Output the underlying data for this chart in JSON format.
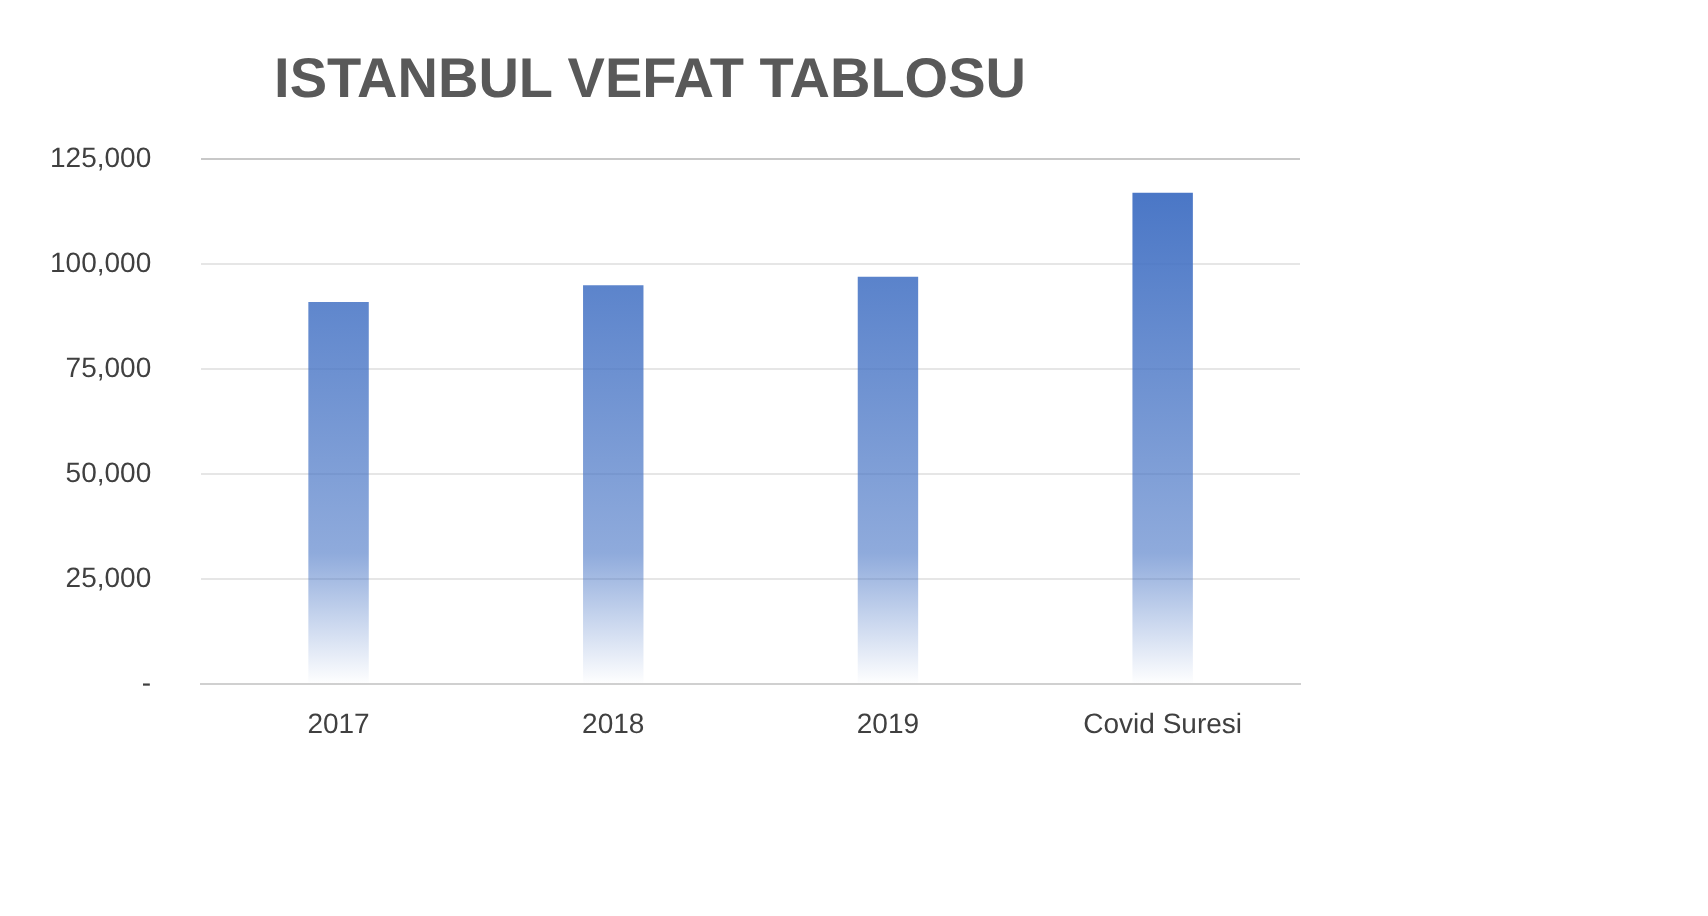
{
  "chart_data": {
    "type": "bar",
    "title": "ISTANBUL VEFAT TABLOSU",
    "categories": [
      "2017",
      "2018",
      "2019",
      "Covid Suresi"
    ],
    "values": [
      91000,
      95000,
      97000,
      117000
    ],
    "color": "#4472c4",
    "ylim": [
      0,
      125000
    ],
    "yticks": [
      {
        "value": 0,
        "label": "-"
      },
      {
        "value": 25000,
        "label": "25,000"
      },
      {
        "value": 50000,
        "label": "50,000"
      },
      {
        "value": 75000,
        "label": "75,000"
      },
      {
        "value": 100000,
        "label": "100,000"
      },
      {
        "value": 125000,
        "label": "125,000"
      }
    ],
    "grid": "y"
  }
}
